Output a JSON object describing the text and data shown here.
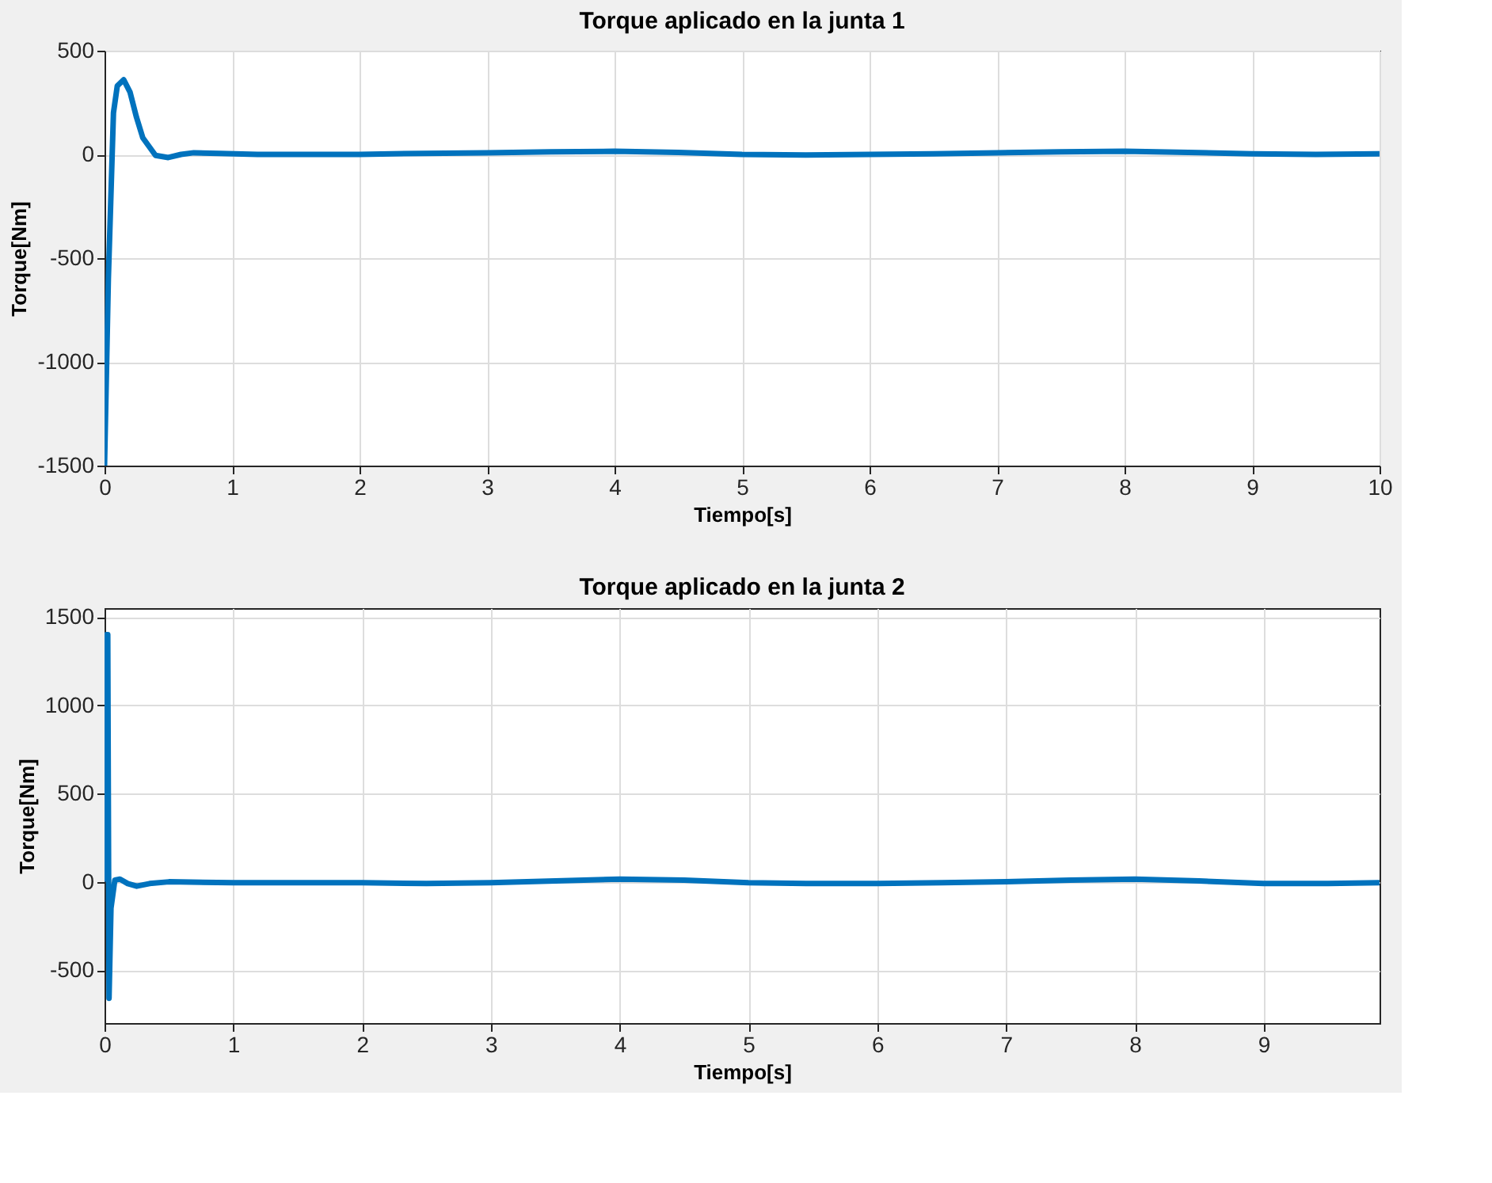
{
  "chart_data": [
    {
      "type": "line",
      "title": "Torque aplicado en la junta 1",
      "xlabel": "Tiempo[s]",
      "ylabel": "Torque[Nm]",
      "xlim": [
        0,
        10
      ],
      "xticks": [
        0,
        1,
        2,
        3,
        4,
        5,
        6,
        7,
        8,
        9,
        10
      ],
      "ylim": [
        -1500,
        500
      ],
      "yticks": [
        -1500,
        -1000,
        -500,
        0,
        500
      ],
      "grid": true,
      "series": [
        {
          "color": "#0072bd",
          "x": [
            0,
            0.03,
            0.07,
            0.1,
            0.15,
            0.2,
            0.25,
            0.3,
            0.4,
            0.5,
            0.6,
            0.7,
            0.9,
            1.2,
            1.5,
            2,
            2.5,
            3,
            3.5,
            4,
            4.5,
            5,
            5.5,
            6,
            6.5,
            7,
            7.5,
            8,
            8.5,
            9,
            9.5,
            10
          ],
          "values": [
            -1500,
            -600,
            200,
            330,
            360,
            300,
            180,
            80,
            -5,
            -15,
            0,
            8,
            5,
            0,
            0,
            0,
            5,
            8,
            12,
            15,
            10,
            0,
            -3,
            0,
            3,
            8,
            12,
            15,
            10,
            3,
            0,
            3
          ]
        }
      ]
    },
    {
      "type": "line",
      "title": "Torque aplicado en la junta 2",
      "xlabel": "Tiempo[s]",
      "ylabel": "Torque[Nm]",
      "xlim": [
        0,
        9.9
      ],
      "xticks": [
        0,
        1,
        2,
        3,
        4,
        5,
        6,
        7,
        8,
        9
      ],
      "ylim": [
        -800,
        1550
      ],
      "yticks": [
        -500,
        0,
        500,
        1000,
        1500
      ],
      "grid": true,
      "series": [
        {
          "color": "#0072bd",
          "x": [
            0,
            0.015,
            0.025,
            0.035,
            0.05,
            0.08,
            0.12,
            0.18,
            0.25,
            0.35,
            0.5,
            1,
            1.5,
            2,
            2.5,
            3,
            3.5,
            4,
            4.5,
            5,
            5.5,
            6,
            6.5,
            7,
            7.5,
            8,
            8.5,
            9,
            9.5,
            9.9
          ],
          "values": [
            0,
            1400,
            1400,
            -660,
            -150,
            10,
            15,
            -10,
            -25,
            -10,
            0,
            -5,
            -5,
            -5,
            -10,
            -5,
            5,
            15,
            10,
            -5,
            -10,
            -10,
            -5,
            0,
            10,
            15,
            5,
            -10,
            -10,
            -5
          ]
        }
      ]
    }
  ]
}
